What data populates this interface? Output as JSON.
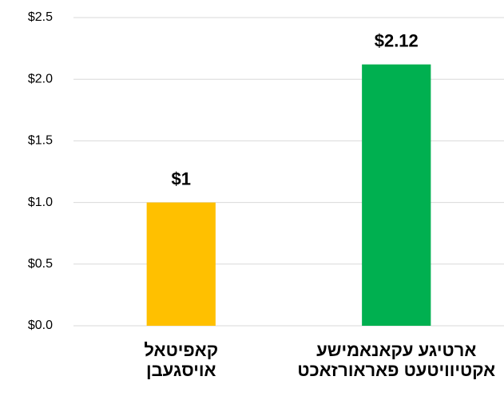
{
  "chart_data": {
    "type": "bar",
    "categories": [
      "קאפיטאל אויסגעבן",
      "ארטיגע עקאנאמישע אקטיוויטעט פאראורזאכט"
    ],
    "values": [
      1,
      2.12
    ],
    "value_labels": [
      "$1",
      "$2.12"
    ],
    "colors": [
      "#ffc000",
      "#00b050"
    ],
    "ylim": [
      0,
      2.5
    ],
    "yticks": [
      {
        "value": 0,
        "label": "$0.0"
      },
      {
        "value": 0.5,
        "label": "$0.5"
      },
      {
        "value": 1,
        "label": "$1.0"
      },
      {
        "value": 1.5,
        "label": "$1.5"
      },
      {
        "value": 2,
        "label": "$2.0"
      },
      {
        "value": 2.5,
        "label": "$2.5"
      }
    ],
    "grid": true
  }
}
